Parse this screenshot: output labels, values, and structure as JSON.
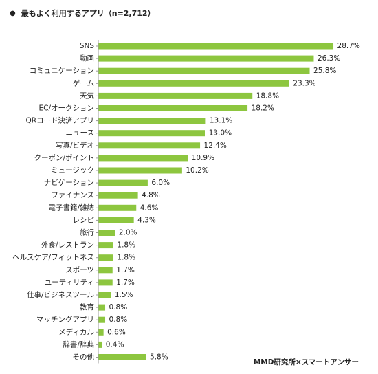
{
  "title": {
    "bullet": "●",
    "text": "最もよく利用するアプリ（n=2,712）"
  },
  "source": "MMD研究所×スマートアンサー",
  "colors": {
    "bar": "#8dc63f",
    "axis": "#999999",
    "text": "#222222"
  },
  "chart_data": {
    "type": "bar",
    "orientation": "horizontal",
    "title": "最もよく利用するアプリ（n=2,712）",
    "unit": "%",
    "grid": false,
    "legend": "none",
    "xlim": [
      0,
      30
    ],
    "categories": [
      "SNS",
      "動画",
      "コミュニケーション",
      "ゲーム",
      "天気",
      "EC/オークション",
      "QRコード決済アプリ",
      "ニュース",
      "写真/ビデオ",
      "クーポン/ポイント",
      "ミュージック",
      "ナビゲーション",
      "ファイナンス",
      "電子書籍/雑誌",
      "レシピ",
      "旅行",
      "外食/レストラン",
      "ヘルスケア/フィットネス",
      "スポーツ",
      "ユーティリティ",
      "仕事/ビジネスツール",
      "教育",
      "マッチングアプリ",
      "メディカル",
      "辞書/辞典",
      "その他"
    ],
    "values": [
      28.7,
      26.3,
      25.8,
      23.3,
      18.8,
      18.2,
      13.1,
      13.0,
      12.4,
      10.9,
      10.2,
      6.0,
      4.8,
      4.6,
      4.3,
      2.0,
      1.8,
      1.8,
      1.7,
      1.7,
      1.5,
      0.8,
      0.8,
      0.6,
      0.4,
      5.8
    ],
    "value_labels": [
      "28.7%",
      "26.3%",
      "25.8%",
      "23.3%",
      "18.8%",
      "18.2%",
      "13.1%",
      "13.0%",
      "12.4%",
      "10.9%",
      "10.2%",
      "6.0%",
      "4.8%",
      "4.6%",
      "4.3%",
      "2.0%",
      "1.8%",
      "1.8%",
      "1.7%",
      "1.7%",
      "1.5%",
      "0.8%",
      "0.8%",
      "0.6%",
      "0.4%",
      "5.8%"
    ]
  }
}
